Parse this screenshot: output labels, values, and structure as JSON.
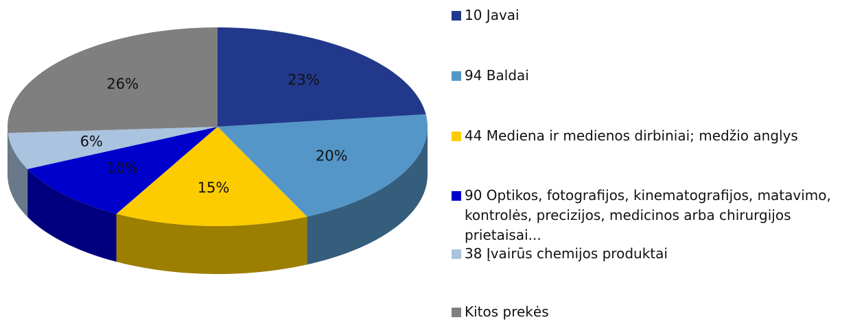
{
  "chart_data": {
    "type": "pie",
    "categories": [
      "10 Javai",
      "94 Baldai",
      "44 Mediena ir medienos dirbiniai; medžio anglys",
      "90 Optikos, fotografijos, kinematografijos, matavimo, kontrolės, precizijos, medicinos arba chirurgijos prietaisai...",
      "38 Įvairūs chemijos produktai",
      "Kitos prekės"
    ],
    "values": [
      23,
      20,
      15,
      10,
      6,
      26
    ],
    "value_labels": [
      "23%",
      "20%",
      "15%",
      "10%",
      "6%",
      "26%"
    ],
    "colors": [
      "#22398b",
      "#5596c8",
      "#fccc00",
      "#0000cc",
      "#aac3df",
      "#7f7f7f"
    ],
    "legend": "right"
  }
}
